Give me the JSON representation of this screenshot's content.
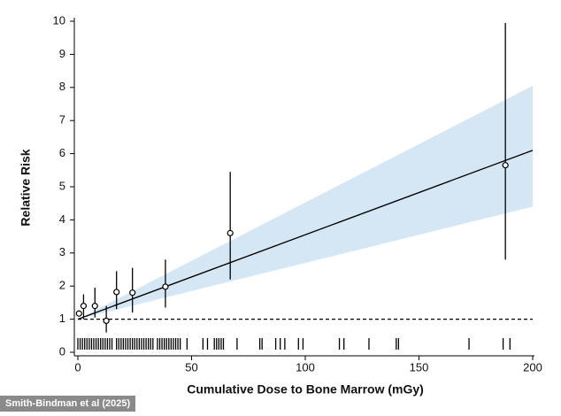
{
  "chart_data": {
    "type": "scatter",
    "x_label": "Cumulative Dose to Bone Marrow (mGy)",
    "y_label": "Relative Risk",
    "xlim": [
      0,
      200
    ],
    "ylim": [
      0,
      10
    ],
    "xticks": [
      0,
      50,
      100,
      150,
      200
    ],
    "yticks": [
      0,
      1,
      2,
      3,
      4,
      5,
      6,
      7,
      8,
      9,
      10
    ],
    "points": {
      "x": [
        0.5,
        2.5,
        7.5,
        12.5,
        17,
        24,
        38.5,
        67,
        188
      ],
      "values": [
        1.17,
        1.4,
        1.4,
        0.95,
        1.82,
        1.8,
        1.98,
        3.6,
        5.65
      ],
      "lower": [
        1.1,
        1.0,
        1.05,
        0.6,
        1.3,
        1.2,
        1.35,
        2.2,
        2.8
      ],
      "upper": [
        1.25,
        1.75,
        1.95,
        1.4,
        2.45,
        2.55,
        2.8,
        5.45,
        9.95
      ],
      "color": "#000000"
    },
    "fit": {
      "x": [
        0,
        200
      ],
      "values": [
        1,
        6.1
      ],
      "color": "#000000"
    },
    "band": {
      "x": [
        0,
        200
      ],
      "lower": [
        1,
        4.4
      ],
      "upper": [
        1,
        8.05
      ],
      "color": "#d5e7f4"
    },
    "reference": {
      "value": 1
    },
    "rug": [
      0,
      1,
      2,
      3,
      4,
      5,
      6,
      7,
      8,
      9,
      10,
      11,
      12,
      13,
      14,
      15,
      17,
      18,
      19,
      20,
      21,
      22,
      23,
      24,
      25,
      26,
      27,
      28,
      29,
      30,
      31,
      32,
      33,
      35,
      36,
      37,
      38,
      39,
      40,
      41,
      42,
      43,
      44,
      45,
      48,
      55,
      57,
      60,
      61,
      62,
      63,
      64,
      70,
      80,
      81,
      87,
      89,
      91,
      97,
      99,
      115,
      117,
      128,
      140,
      141,
      172,
      187,
      190
    ]
  },
  "credit": "Smith-Bindman et al (2025)"
}
